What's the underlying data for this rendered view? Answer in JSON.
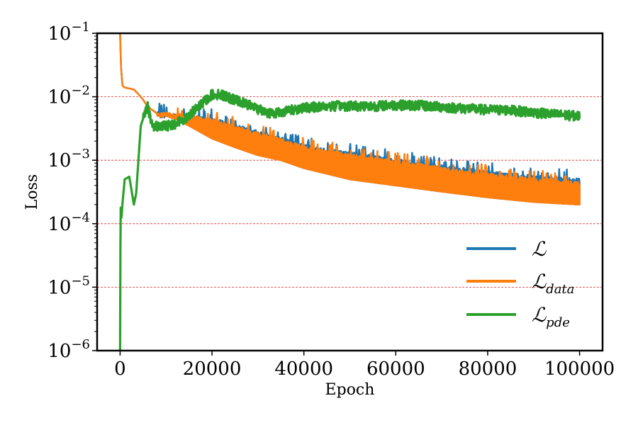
{
  "chart_data": {
    "type": "line",
    "title": "",
    "xlabel": "Epoch",
    "ylabel": "Loss",
    "xlim": [
      -5000,
      105000
    ],
    "ylim": [
      1e-06,
      0.1
    ],
    "yscale": "log",
    "xticks": [
      0,
      20000,
      40000,
      60000,
      80000,
      100000
    ],
    "xtick_labels": [
      "0",
      "20000",
      "40000",
      "60000",
      "80000",
      "100000"
    ],
    "yticks": [
      1e-06,
      1e-05,
      0.0001,
      0.001,
      0.01,
      0.1
    ],
    "ytick_labels": [
      {
        "base": "10",
        "exp": "−6"
      },
      {
        "base": "10",
        "exp": "−5"
      },
      {
        "base": "10",
        "exp": "−4"
      },
      {
        "base": "10",
        "exp": "−3"
      },
      {
        "base": "10",
        "exp": "−2"
      },
      {
        "base": "10",
        "exp": "−1"
      }
    ],
    "grid": "horizontal dashed red",
    "grid_color": "#d62728",
    "legend_position": "bottom-right",
    "series": [
      {
        "name": "L",
        "legend_main": "ℒ",
        "legend_sub": "",
        "color": "#1f77b4",
        "band": true,
        "x": [
          0,
          200,
          500,
          1000,
          2000,
          3000,
          4000,
          5000,
          6000,
          8000,
          10000,
          12000,
          15000,
          20000,
          25000,
          30000,
          35000,
          40000,
          50000,
          60000,
          70000,
          80000,
          90000,
          100000
        ],
        "upper": [
          0.1,
          0.03,
          0.015,
          0.014,
          0.0135,
          0.013,
          0.011,
          0.009,
          0.007,
          0.0055,
          0.0055,
          0.0052,
          0.005,
          0.0045,
          0.0035,
          0.0028,
          0.0022,
          0.0017,
          0.0013,
          0.001,
          0.0008,
          0.00065,
          0.00055,
          0.0005
        ],
        "lower": [
          0.1,
          0.03,
          0.015,
          0.014,
          0.0135,
          0.013,
          0.011,
          0.009,
          0.007,
          0.0055,
          0.005,
          0.0045,
          0.0035,
          0.0022,
          0.0016,
          0.0012,
          0.001,
          0.00075,
          0.0005,
          0.0004,
          0.00032,
          0.00026,
          0.00022,
          0.0002
        ]
      },
      {
        "name": "L_data",
        "legend_main": "ℒ",
        "legend_sub": "data",
        "color": "#ff7f0e",
        "band": true,
        "x": [
          0,
          200,
          500,
          1000,
          2000,
          3000,
          4000,
          5000,
          6000,
          8000,
          10000,
          12000,
          15000,
          20000,
          25000,
          30000,
          35000,
          40000,
          50000,
          60000,
          70000,
          80000,
          90000,
          100000
        ],
        "upper": [
          0.1,
          0.03,
          0.015,
          0.014,
          0.0135,
          0.013,
          0.011,
          0.009,
          0.007,
          0.0055,
          0.0055,
          0.0052,
          0.005,
          0.0044,
          0.0034,
          0.0027,
          0.0021,
          0.0016,
          0.0012,
          0.00095,
          0.00075,
          0.0006,
          0.0005,
          0.00045
        ],
        "lower": [
          0.1,
          0.03,
          0.015,
          0.014,
          0.0135,
          0.013,
          0.011,
          0.009,
          0.007,
          0.0055,
          0.005,
          0.0045,
          0.0035,
          0.0022,
          0.0016,
          0.0012,
          0.001,
          0.00075,
          0.0005,
          0.0004,
          0.00032,
          0.00026,
          0.00022,
          0.0002
        ]
      },
      {
        "name": "L_pde",
        "legend_main": "ℒ",
        "legend_sub": "pde",
        "color": "#2ca02c",
        "band": false,
        "x": [
          0,
          100,
          300,
          500,
          1000,
          2000,
          3000,
          3500,
          4500,
          5000,
          6000,
          7000,
          8000,
          10000,
          12000,
          14000,
          16000,
          18000,
          20000,
          22000,
          25000,
          28000,
          30000,
          33000,
          36000,
          40000,
          45000,
          50000,
          55000,
          60000,
          65000,
          70000,
          75000,
          80000,
          85000,
          90000,
          95000,
          100000
        ],
        "values": [
          1e-06,
          0.0002,
          0.00012,
          0.0002,
          0.0005,
          0.00055,
          0.0002,
          0.0003,
          0.0035,
          0.0045,
          0.007,
          0.0035,
          0.0035,
          0.0035,
          0.0038,
          0.0045,
          0.006,
          0.008,
          0.011,
          0.011,
          0.009,
          0.0075,
          0.0065,
          0.0055,
          0.006,
          0.0068,
          0.0072,
          0.0073,
          0.0072,
          0.0075,
          0.0074,
          0.007,
          0.0066,
          0.0063,
          0.0062,
          0.0057,
          0.0053,
          0.005
        ]
      }
    ]
  }
}
